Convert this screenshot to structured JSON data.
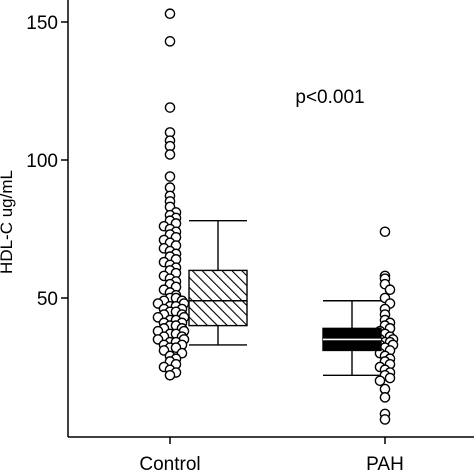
{
  "chart_data": {
    "type": "scatter",
    "ylabel": "HDL-C ug/mL",
    "ylim": [
      0,
      155
    ],
    "yticks": [
      50,
      100,
      150
    ],
    "categories": [
      "Control",
      "PAH"
    ],
    "annotation": "p<0.001",
    "grid": false,
    "legend": "none",
    "colors": {
      "control_box_fill": "hatched",
      "pah_box_fill": "#000000",
      "points": "#ffffff",
      "stroke": "#000000"
    },
    "series": [
      {
        "name": "Control",
        "box": {
          "q1": 40,
          "median": 49,
          "q3": 60,
          "whisker_low": 33,
          "whisker_high": 78
        },
        "values": [
          153,
          143,
          119,
          110,
          107,
          105,
          102,
          94,
          90,
          87,
          85,
          83,
          81,
          80,
          79,
          78,
          77,
          76,
          75,
          74,
          73,
          72,
          71,
          70,
          69,
          68,
          67,
          66,
          65,
          64,
          63,
          62,
          61,
          60,
          59,
          58,
          57,
          56,
          55,
          54,
          53,
          52,
          51,
          50,
          50,
          49,
          49,
          48,
          48,
          47,
          47,
          46,
          46,
          45,
          45,
          44,
          44,
          43,
          43,
          42,
          42,
          41,
          41,
          40,
          40,
          39,
          39,
          38,
          38,
          37,
          37,
          36,
          36,
          35,
          35,
          34,
          34,
          33,
          33,
          32,
          32,
          31,
          30,
          29,
          28,
          27,
          26,
          25,
          24,
          23,
          22
        ]
      },
      {
        "name": "PAH",
        "box": {
          "q1": 31,
          "median": 35,
          "q3": 39,
          "whisker_low": 22,
          "whisker_high": 49
        },
        "values": [
          74,
          58,
          57,
          55,
          53,
          50,
          48,
          46,
          44,
          42,
          41,
          40,
          39,
          38,
          37,
          36,
          35,
          35,
          34,
          34,
          33,
          33,
          32,
          31,
          30,
          29,
          28,
          27,
          26,
          25,
          24,
          23,
          22,
          21,
          20,
          17,
          14,
          8,
          6
        ]
      }
    ]
  }
}
